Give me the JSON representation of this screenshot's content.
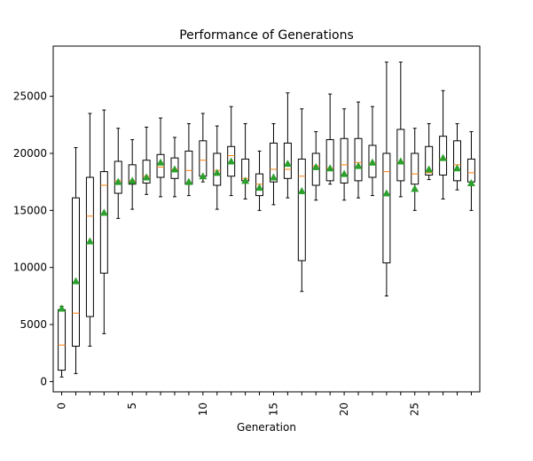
{
  "chart_data": {
    "type": "box",
    "title": "Performance of Generations",
    "xlabel": "Generation",
    "ylabel": "",
    "ylim": [
      -900,
      29400
    ],
    "xlim": [
      -0.6,
      29.6
    ],
    "yticks": [
      0,
      5000,
      10000,
      15000,
      20000,
      25000
    ],
    "xticks": [
      0,
      5,
      10,
      15,
      20,
      25
    ],
    "xtick_rotation": 90,
    "grid": false,
    "colors": {
      "box": "#000000",
      "median": "#ff7f0e",
      "mean": "#2ca02c"
    },
    "boxes": [
      {
        "x": 0,
        "whislo": 400,
        "q1": 1000,
        "med": 3200,
        "q3": 6300,
        "whishi": 6600,
        "mean": 6400
      },
      {
        "x": 1,
        "whislo": 700,
        "q1": 3100,
        "med": 6000,
        "q3": 16100,
        "whishi": 20500,
        "mean": 8800
      },
      {
        "x": 2,
        "whislo": 3100,
        "q1": 5700,
        "med": 14500,
        "q3": 17900,
        "whishi": 23500,
        "mean": 12300
      },
      {
        "x": 3,
        "whislo": 4200,
        "q1": 9500,
        "med": 17200,
        "q3": 18400,
        "whishi": 23800,
        "mean": 14800
      },
      {
        "x": 4,
        "whislo": 14300,
        "q1": 16500,
        "med": 17600,
        "q3": 19300,
        "whishi": 22200,
        "mean": 17500
      },
      {
        "x": 5,
        "whislo": 15100,
        "q1": 17300,
        "med": 17600,
        "q3": 19000,
        "whishi": 21200,
        "mean": 17600
      },
      {
        "x": 6,
        "whislo": 16400,
        "q1": 17400,
        "med": 18000,
        "q3": 19400,
        "whishi": 22300,
        "mean": 17900
      },
      {
        "x": 7,
        "whislo": 16200,
        "q1": 17900,
        "med": 18800,
        "q3": 19900,
        "whishi": 23100,
        "mean": 19200
      },
      {
        "x": 8,
        "whislo": 16200,
        "q1": 17800,
        "med": 18600,
        "q3": 19600,
        "whishi": 21400,
        "mean": 18600
      },
      {
        "x": 9,
        "whislo": 16300,
        "q1": 17300,
        "med": 18500,
        "q3": 20200,
        "whishi": 22600,
        "mean": 17500
      },
      {
        "x": 10,
        "whislo": 17500,
        "q1": 18000,
        "med": 19400,
        "q3": 21100,
        "whishi": 23500,
        "mean": 18000
      },
      {
        "x": 11,
        "whislo": 15100,
        "q1": 17200,
        "med": 18500,
        "q3": 20000,
        "whishi": 22400,
        "mean": 18300
      },
      {
        "x": 12,
        "whislo": 16300,
        "q1": 18000,
        "med": 19800,
        "q3": 20600,
        "whishi": 24100,
        "mean": 19300
      },
      {
        "x": 13,
        "whislo": 16000,
        "q1": 17600,
        "med": 17800,
        "q3": 19500,
        "whishi": 22600,
        "mean": 17600
      },
      {
        "x": 14,
        "whislo": 15000,
        "q1": 16300,
        "med": 17300,
        "q3": 18200,
        "whishi": 20200,
        "mean": 17000
      },
      {
        "x": 15,
        "whislo": 15500,
        "q1": 17500,
        "med": 18600,
        "q3": 20900,
        "whishi": 22600,
        "mean": 17900
      },
      {
        "x": 16,
        "whislo": 16100,
        "q1": 17800,
        "med": 18600,
        "q3": 20900,
        "whishi": 25300,
        "mean": 19100
      },
      {
        "x": 17,
        "whislo": 7900,
        "q1": 10600,
        "med": 18000,
        "q3": 19500,
        "whishi": 23900,
        "mean": 16700
      },
      {
        "x": 18,
        "whislo": 15900,
        "q1": 17200,
        "med": 18900,
        "q3": 20000,
        "whishi": 21900,
        "mean": 18800
      },
      {
        "x": 19,
        "whislo": 17300,
        "q1": 17600,
        "med": 18700,
        "q3": 21200,
        "whishi": 25200,
        "mean": 18700
      },
      {
        "x": 20,
        "whislo": 15900,
        "q1": 17400,
        "med": 19000,
        "q3": 21300,
        "whishi": 23900,
        "mean": 18200
      },
      {
        "x": 21,
        "whislo": 16100,
        "q1": 17600,
        "med": 19200,
        "q3": 21300,
        "whishi": 24500,
        "mean": 18900
      },
      {
        "x": 22,
        "whislo": 16300,
        "q1": 17900,
        "med": 19100,
        "q3": 20700,
        "whishi": 24100,
        "mean": 19200
      },
      {
        "x": 23,
        "whislo": 7500,
        "q1": 10400,
        "med": 18400,
        "q3": 20000,
        "whishi": 28000,
        "mean": 16500
      },
      {
        "x": 24,
        "whislo": 16200,
        "q1": 17600,
        "med": 19200,
        "q3": 22100,
        "whishi": 28000,
        "mean": 19300
      },
      {
        "x": 25,
        "whislo": 15000,
        "q1": 17300,
        "med": 18200,
        "q3": 20000,
        "whishi": 22200,
        "mean": 16900
      },
      {
        "x": 26,
        "whislo": 17700,
        "q1": 18100,
        "med": 18300,
        "q3": 20600,
        "whishi": 22600,
        "mean": 18600
      },
      {
        "x": 27,
        "whislo": 16000,
        "q1": 18100,
        "med": 19500,
        "q3": 21500,
        "whishi": 25500,
        "mean": 19600
      },
      {
        "x": 28,
        "whislo": 16800,
        "q1": 17600,
        "med": 19000,
        "q3": 21100,
        "whishi": 22600,
        "mean": 18700
      },
      {
        "x": 29,
        "whislo": 15000,
        "q1": 17500,
        "med": 18300,
        "q3": 19500,
        "whishi": 21900,
        "mean": 17400
      }
    ]
  }
}
